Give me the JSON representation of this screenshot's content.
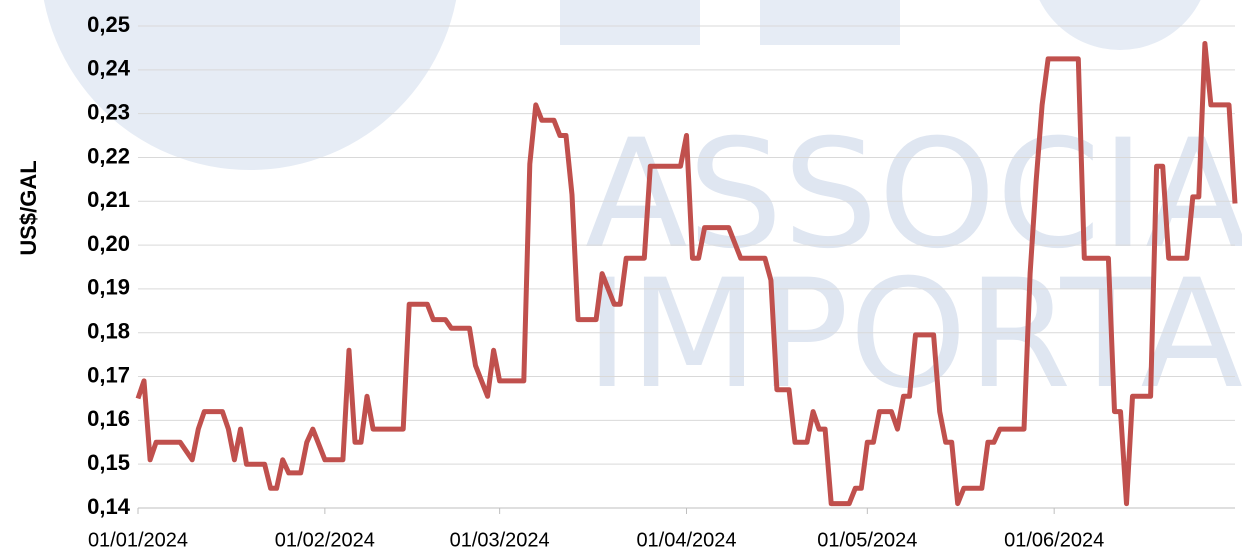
{
  "chart_data": {
    "type": "line",
    "watermark": [
      "ASSOCIAÇÃO",
      "IMPORTADO"
    ],
    "y_label": "US$/GAL",
    "x": [
      "2024-01-01",
      "2024-01-02",
      "2024-01-03",
      "2024-01-04",
      "2024-01-08",
      "2024-01-10",
      "2024-01-11",
      "2024-01-12",
      "2024-01-15",
      "2024-01-16",
      "2024-01-17",
      "2024-01-18",
      "2024-01-19",
      "2024-01-22",
      "2024-01-23",
      "2024-01-24",
      "2024-01-25",
      "2024-01-26",
      "2024-01-28",
      "2024-01-29",
      "2024-01-30",
      "2024-02-01",
      "2024-02-04",
      "2024-02-05",
      "2024-02-06",
      "2024-02-07",
      "2024-02-08",
      "2024-02-09",
      "2024-02-14",
      "2024-02-15",
      "2024-02-18",
      "2024-02-19",
      "2024-02-21",
      "2024-02-22",
      "2024-02-25",
      "2024-02-26",
      "2024-02-28",
      "2024-02-29",
      "2024-03-01",
      "2024-03-05",
      "2024-03-06",
      "2024-03-07",
      "2024-03-08",
      "2024-03-10",
      "2024-03-11",
      "2024-03-12",
      "2024-03-13",
      "2024-03-14",
      "2024-03-17",
      "2024-03-18",
      "2024-03-20",
      "2024-03-21",
      "2024-03-22",
      "2024-03-25",
      "2024-03-26",
      "2024-03-31",
      "2024-04-01",
      "2024-04-02",
      "2024-04-03",
      "2024-04-04",
      "2024-04-08",
      "2024-04-10",
      "2024-04-14",
      "2024-04-15",
      "2024-04-16",
      "2024-04-18",
      "2024-04-19",
      "2024-04-21",
      "2024-04-22",
      "2024-04-23",
      "2024-04-24",
      "2024-04-25",
      "2024-04-28",
      "2024-04-29",
      "2024-04-30",
      "2024-05-01",
      "2024-05-02",
      "2024-05-03",
      "2024-05-05",
      "2024-05-06",
      "2024-05-07",
      "2024-05-08",
      "2024-05-09",
      "2024-05-12",
      "2024-05-13",
      "2024-05-14",
      "2024-05-15",
      "2024-05-16",
      "2024-05-17",
      "2024-05-20",
      "2024-05-21",
      "2024-05-22",
      "2024-05-23",
      "2024-05-27",
      "2024-05-28",
      "2024-05-29",
      "2024-05-30",
      "2024-05-31",
      "2024-06-05",
      "2024-06-06",
      "2024-06-10",
      "2024-06-11",
      "2024-06-12",
      "2024-06-13",
      "2024-06-14",
      "2024-06-17",
      "2024-06-18",
      "2024-06-19",
      "2024-06-20",
      "2024-06-23",
      "2024-06-24",
      "2024-06-25",
      "2024-06-26",
      "2024-06-27",
      "2024-06-30",
      "2024-07-01"
    ],
    "series": [
      {
        "color": "#c0504d",
        "values": [
          0.165,
          0.169,
          0.151,
          0.155,
          0.155,
          0.151,
          0.158,
          0.162,
          0.162,
          0.158,
          0.151,
          0.158,
          0.15,
          0.15,
          0.1445,
          0.1445,
          0.151,
          0.148,
          0.148,
          0.155,
          0.158,
          0.151,
          0.151,
          0.176,
          0.155,
          0.155,
          0.1655,
          0.158,
          0.158,
          0.1865,
          0.1865,
          0.183,
          0.183,
          0.181,
          0.181,
          0.1725,
          0.1655,
          0.176,
          0.169,
          0.169,
          0.2185,
          0.232,
          0.2285,
          0.2285,
          0.225,
          0.225,
          0.2115,
          0.183,
          0.183,
          0.1935,
          0.1865,
          0.1865,
          0.197,
          0.197,
          0.218,
          0.218,
          0.225,
          0.197,
          0.197,
          0.204,
          0.204,
          0.197,
          0.197,
          0.192,
          0.167,
          0.167,
          0.155,
          0.155,
          0.162,
          0.158,
          0.158,
          0.141,
          0.141,
          0.1445,
          0.1445,
          0.155,
          0.155,
          0.162,
          0.162,
          0.158,
          0.1655,
          0.1655,
          0.1795,
          0.1795,
          0.162,
          0.155,
          0.155,
          0.141,
          0.1445,
          0.1445,
          0.155,
          0.155,
          0.158,
          0.158,
          0.1935,
          0.2145,
          0.232,
          0.2425,
          0.2425,
          0.197,
          0.197,
          0.162,
          0.162,
          0.141,
          0.1655,
          0.1655,
          0.218,
          0.218,
          0.197,
          0.197,
          0.211,
          0.211,
          0.246,
          0.232,
          0.232,
          0.2095
        ]
      }
    ],
    "xlim": [
      "2024-01-01",
      "2024-07-01"
    ],
    "xticks": [
      {
        "value": "2024-01-01",
        "label": "01/01/2024"
      },
      {
        "value": "2024-02-01",
        "label": "01/02/2024"
      },
      {
        "value": "2024-03-01",
        "label": "01/03/2024"
      },
      {
        "value": "2024-04-01",
        "label": "01/04/2024"
      },
      {
        "value": "2024-05-01",
        "label": "01/05/2024"
      },
      {
        "value": "2024-06-01",
        "label": "01/06/2024"
      }
    ],
    "ylim": [
      0.14,
      0.25
    ],
    "yticks": [
      {
        "value": 0.14,
        "label": "0,14"
      },
      {
        "value": 0.15,
        "label": "0,15"
      },
      {
        "value": 0.16,
        "label": "0,16"
      },
      {
        "value": 0.17,
        "label": "0,17"
      },
      {
        "value": 0.18,
        "label": "0,18"
      },
      {
        "value": 0.19,
        "label": "0,19"
      },
      {
        "value": 0.2,
        "label": "0,20"
      },
      {
        "value": 0.21,
        "label": "0,21"
      },
      {
        "value": 0.22,
        "label": "0,22"
      },
      {
        "value": 0.23,
        "label": "0,23"
      },
      {
        "value": 0.24,
        "label": "0,24"
      },
      {
        "value": 0.25,
        "label": "0,25"
      }
    ],
    "grid": true
  }
}
